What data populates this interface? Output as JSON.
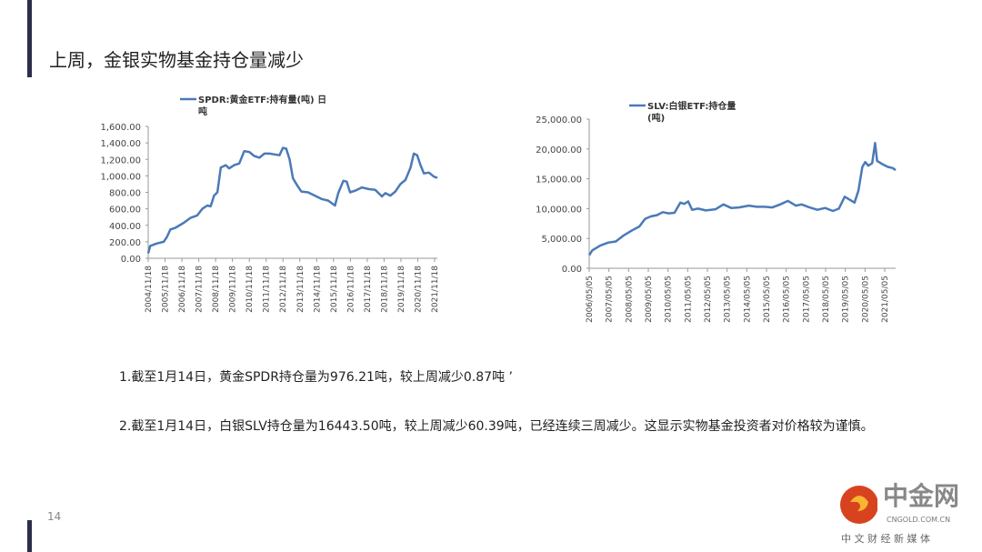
{
  "slide": {
    "title": "上周，金银实物基金持仓量减少",
    "page_number": "14",
    "notes": [
      "1.截至1月14日，黄金SPDR持仓量为976.21吨，较上周减少0.87吨 ’",
      "2.截至1月14日，白银SLV持仓量为16443.50吨，较上周减少60.39吨，已经连续三周减少。这显示实物基金投资者对价格较为谨慎。"
    ],
    "logo": {
      "name": "中金网",
      "domain": "CNGOLD.COM.CN",
      "tagline": "中 文 财 经 新 媒 体"
    }
  },
  "colors": {
    "line": "#4a7ab8",
    "accent_bar": "#2b2f4a"
  },
  "chart_data": [
    {
      "type": "line",
      "legend": [
        "SPDR:黄金ETF:持有量(吨) 日",
        "吨"
      ],
      "ylim": [
        0,
        1600
      ],
      "yticks": [
        "0.00",
        "200.00",
        "400.00",
        "600.00",
        "800.00",
        "1,000.00",
        "1,200.00",
        "1,400.00",
        "1,600.00"
      ],
      "xticks": [
        "2004/11/18",
        "2005/11/18",
        "2006/11/18",
        "2007/11/18",
        "2008/11/18",
        "2009/11/18",
        "2010/11/18",
        "2011/11/18",
        "2012/11/18",
        "2013/11/18",
        "2014/11/18",
        "2015/11/18",
        "2016/11/18",
        "2017/11/18",
        "2018/11/18",
        "2019/11/18",
        "2020/11/18",
        "2021/11/18"
      ],
      "xlim": [
        2004.88,
        2022.1
      ],
      "x": [
        2004.88,
        2005.0,
        2005.4,
        2005.8,
        2006.0,
        2006.2,
        2006.5,
        2007.0,
        2007.4,
        2007.8,
        2008.1,
        2008.4,
        2008.6,
        2008.8,
        2009.0,
        2009.2,
        2009.5,
        2009.7,
        2010.0,
        2010.3,
        2010.6,
        2010.9,
        2011.2,
        2011.5,
        2011.8,
        2012.1,
        2012.4,
        2012.7,
        2012.9,
        2013.1,
        2013.3,
        2013.5,
        2013.8,
        2014.0,
        2014.4,
        2014.8,
        2015.2,
        2015.6,
        2016.0,
        2016.2,
        2016.5,
        2016.7,
        2016.9,
        2017.2,
        2017.6,
        2018.0,
        2018.4,
        2018.8,
        2019.0,
        2019.3,
        2019.6,
        2019.9,
        2020.2,
        2020.5,
        2020.7,
        2020.9,
        2021.1,
        2021.3,
        2021.6,
        2021.9,
        2022.1
      ],
      "y": [
        60,
        150,
        180,
        200,
        260,
        350,
        370,
        430,
        490,
        520,
        600,
        640,
        630,
        760,
        800,
        1100,
        1130,
        1090,
        1130,
        1150,
        1300,
        1290,
        1240,
        1220,
        1270,
        1270,
        1260,
        1250,
        1340,
        1330,
        1200,
        970,
        870,
        810,
        800,
        760,
        720,
        700,
        640,
        790,
        940,
        930,
        800,
        820,
        860,
        840,
        830,
        750,
        790,
        760,
        810,
        900,
        950,
        1100,
        1270,
        1250,
        1130,
        1030,
        1040,
        990,
        976
      ]
    },
    {
      "type": "line",
      "legend": [
        "SLV:白银ETF:持仓量",
        "(吨)"
      ],
      "ylim": [
        0,
        25000
      ],
      "yticks": [
        "0.00",
        "5,000.00",
        "10,000.00",
        "15,000.00",
        "20,000.00",
        "25,000.00"
      ],
      "xticks": [
        "2006/05/05",
        "2007/05/05",
        "2008/05/05",
        "2009/05/05",
        "2010/05/05",
        "2011/05/05",
        "2012/05/05",
        "2013/05/05",
        "2014/05/05",
        "2015/05/05",
        "2016/05/05",
        "2017/05/05",
        "2018/05/05",
        "2019/05/05",
        "2020/05/05",
        "2021/05/05"
      ],
      "xlim": [
        2006.34,
        2022.0
      ],
      "x": [
        2006.34,
        2006.5,
        2006.9,
        2007.3,
        2007.7,
        2008.1,
        2008.5,
        2008.9,
        2009.2,
        2009.5,
        2009.8,
        2010.1,
        2010.4,
        2010.7,
        2011.0,
        2011.2,
        2011.4,
        2011.6,
        2011.9,
        2012.3,
        2012.8,
        2013.2,
        2013.6,
        2014.0,
        2014.5,
        2014.9,
        2015.3,
        2015.7,
        2016.1,
        2016.5,
        2016.9,
        2017.2,
        2017.6,
        2018.0,
        2018.4,
        2018.8,
        2019.1,
        2019.4,
        2019.6,
        2019.9,
        2020.1,
        2020.3,
        2020.45,
        2020.6,
        2020.8,
        2020.95,
        2021.05,
        2021.3,
        2021.6,
        2021.85,
        2022.0
      ],
      "y": [
        2200,
        3000,
        3800,
        4300,
        4500,
        5500,
        6300,
        7000,
        8300,
        8700,
        8900,
        9400,
        9200,
        9300,
        11000,
        10800,
        11200,
        9800,
        10000,
        9700,
        9900,
        10700,
        10100,
        10200,
        10500,
        10300,
        10300,
        10200,
        10700,
        11300,
        10500,
        10700,
        10200,
        9800,
        10100,
        9600,
        10000,
        12000,
        11600,
        11000,
        13000,
        17000,
        17800,
        17200,
        17600,
        21000,
        18000,
        17500,
        17000,
        16800,
        16443
      ]
    }
  ]
}
